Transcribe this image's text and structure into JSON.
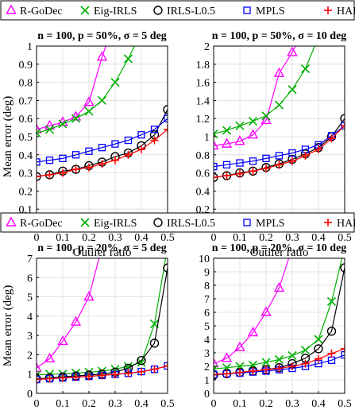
{
  "legend": [
    {
      "name": "R-GoDec",
      "color": "#ff00ff",
      "marker": "triangle"
    },
    {
      "name": "Eig-IRLS",
      "color": "#00b000",
      "marker": "x"
    },
    {
      "name": "IRLS-L0.5",
      "color": "#000000",
      "marker": "circle"
    },
    {
      "name": "MPLS",
      "color": "#0000ff",
      "marker": "square"
    },
    {
      "name": "HARA",
      "color": "#ff0000",
      "marker": "plus"
    }
  ],
  "chart_data": [
    {
      "type": "line",
      "title": "n = 100, p = 50%, σ = 5 deg",
      "xlabel": "Outlier ratio",
      "ylabel": "Mean error (deg)",
      "xlim": [
        0,
        0.5
      ],
      "ylim": [
        0,
        1
      ],
      "xticks": [
        0,
        0.1,
        0.2,
        0.3,
        0.4,
        0.5
      ],
      "xtick_labels": [
        "0",
        "0.1",
        "0.2",
        "0.3",
        "0.4",
        "0.5"
      ],
      "yticks": [
        0,
        0.1,
        0.2,
        0.3,
        0.4,
        0.5,
        0.6,
        0.7,
        0.8,
        0.9,
        1
      ],
      "ytick_labels": [
        "0",
        "0.1",
        "0.2",
        "0.3",
        "0.4",
        "0.5",
        "0.6",
        "0.7",
        "0.8",
        "0.9",
        "1"
      ],
      "grid": true,
      "x": [
        0,
        0.05,
        0.1,
        0.15,
        0.2,
        0.25,
        0.3,
        0.35,
        0.4,
        0.45,
        0.5
      ],
      "series": [
        {
          "name": "R-GoDec",
          "values": [
            0.54,
            0.56,
            0.58,
            0.61,
            0.69,
            0.94,
            1.15,
            null,
            null,
            null,
            null
          ]
        },
        {
          "name": "Eig-IRLS",
          "values": [
            0.52,
            0.54,
            0.57,
            0.6,
            0.64,
            0.7,
            0.8,
            0.93,
            1.08,
            null,
            null
          ]
        },
        {
          "name": "IRLS-L0.5",
          "values": [
            0.28,
            0.29,
            0.31,
            0.32,
            0.34,
            0.36,
            0.39,
            0.41,
            0.45,
            0.51,
            0.65
          ]
        },
        {
          "name": "MPLS",
          "values": [
            0.36,
            0.37,
            0.38,
            0.4,
            0.42,
            0.44,
            0.46,
            0.48,
            0.51,
            0.54,
            0.6
          ]
        },
        {
          "name": "HARA",
          "values": [
            0.28,
            0.29,
            0.3,
            0.32,
            0.33,
            0.35,
            0.37,
            0.4,
            0.43,
            0.48,
            0.54
          ]
        }
      ]
    },
    {
      "type": "line",
      "title": "n = 100, p = 50%, σ = 10 deg",
      "xlabel": "Outlier ratio",
      "ylabel": "",
      "xlim": [
        0,
        0.5
      ],
      "ylim": [
        0,
        2
      ],
      "xticks": [
        0,
        0.1,
        0.2,
        0.3,
        0.4,
        0.5
      ],
      "xtick_labels": [
        "0",
        "0.1",
        "0.2",
        "0.3",
        "0.4",
        "0.5"
      ],
      "yticks": [
        0,
        0.2,
        0.4,
        0.6,
        0.8,
        1,
        1.2,
        1.4,
        1.6,
        1.8,
        2
      ],
      "ytick_labels": [
        "0",
        "0.2",
        "0.4",
        "0.6",
        "0.8",
        "1",
        "1.2",
        "1.4",
        "1.6",
        "1.8",
        "2"
      ],
      "grid": true,
      "x": [
        0,
        0.05,
        0.1,
        0.15,
        0.2,
        0.25,
        0.3,
        0.35,
        0.4,
        0.45,
        0.5
      ],
      "series": [
        {
          "name": "R-GoDec",
          "values": [
            0.9,
            0.92,
            0.95,
            1.02,
            1.18,
            1.7,
            1.93,
            2.2,
            null,
            null,
            null
          ]
        },
        {
          "name": "Eig-IRLS",
          "values": [
            1.03,
            1.07,
            1.12,
            1.17,
            1.23,
            1.35,
            1.52,
            1.75,
            2.1,
            null,
            null
          ]
        },
        {
          "name": "IRLS-L0.5",
          "values": [
            0.55,
            0.57,
            0.6,
            0.62,
            0.66,
            0.7,
            0.75,
            0.81,
            0.88,
            1.0,
            1.2
          ]
        },
        {
          "name": "MPLS",
          "values": [
            0.67,
            0.69,
            0.71,
            0.73,
            0.76,
            0.79,
            0.82,
            0.86,
            0.91,
            1.01,
            1.12
          ]
        },
        {
          "name": "HARA",
          "values": [
            0.55,
            0.57,
            0.59,
            0.62,
            0.65,
            0.69,
            0.73,
            0.79,
            0.86,
            0.98,
            1.12
          ]
        }
      ]
    },
    {
      "type": "line",
      "title": "n = 100, p = 20%, σ = 5 deg",
      "xlabel": "Outlier ratio",
      "ylabel": "Mean error (deg)",
      "xlim": [
        0,
        0.5
      ],
      "ylim": [
        0,
        7
      ],
      "xticks": [
        0,
        0.1,
        0.2,
        0.3,
        0.4,
        0.5
      ],
      "xtick_labels": [
        "0",
        "0.1",
        "0.2",
        "0.3",
        "0.4",
        "0.5"
      ],
      "yticks": [
        0,
        1,
        2,
        3,
        4,
        5,
        6,
        7
      ],
      "ytick_labels": [
        "0",
        "1",
        "2",
        "3",
        "4",
        "5",
        "6",
        "7"
      ],
      "grid": true,
      "x": [
        0,
        0.05,
        0.1,
        0.15,
        0.2,
        0.25,
        0.3,
        0.35,
        0.4,
        0.45,
        0.5
      ],
      "series": [
        {
          "name": "R-GoDec",
          "values": [
            1.3,
            1.8,
            2.7,
            3.7,
            5.0,
            7.6,
            null,
            null,
            null,
            null,
            null
          ]
        },
        {
          "name": "Eig-IRLS",
          "values": [
            0.95,
            1.0,
            1.0,
            1.05,
            1.1,
            1.15,
            1.25,
            1.4,
            1.6,
            3.6,
            7.6
          ]
        },
        {
          "name": "IRLS-L0.5",
          "values": [
            0.75,
            0.8,
            0.85,
            0.9,
            0.95,
            1.0,
            1.1,
            1.3,
            1.7,
            2.6,
            6.5
          ]
        },
        {
          "name": "MPLS",
          "values": [
            0.72,
            0.76,
            0.8,
            0.84,
            0.88,
            0.93,
            0.98,
            1.04,
            1.13,
            1.25,
            1.42
          ]
        },
        {
          "name": "HARA",
          "values": [
            0.72,
            0.76,
            0.8,
            0.84,
            0.88,
            0.93,
            0.98,
            1.04,
            1.12,
            1.25,
            1.42
          ]
        }
      ]
    },
    {
      "type": "line",
      "title": "n = 100, p = 20%, σ = 10 deg",
      "xlabel": "Outlier ratio",
      "ylabel": "",
      "xlim": [
        0,
        0.5
      ],
      "ylim": [
        0,
        10
      ],
      "xticks": [
        0,
        0.1,
        0.2,
        0.3,
        0.4,
        0.5
      ],
      "xtick_labels": [
        "0",
        "0.1",
        "0.2",
        "0.3",
        "0.4",
        "0.5"
      ],
      "yticks": [
        0,
        1,
        2,
        3,
        4,
        5,
        6,
        7,
        8,
        9,
        10
      ],
      "ytick_labels": [
        "0",
        "1",
        "2",
        "3",
        "4",
        "5",
        "6",
        "7",
        "8",
        "9",
        "10"
      ],
      "grid": true,
      "x": [
        0,
        0.05,
        0.1,
        0.15,
        0.2,
        0.25,
        0.3,
        0.35,
        0.4,
        0.45,
        0.5
      ],
      "series": [
        {
          "name": "R-GoDec",
          "values": [
            2.2,
            2.6,
            3.4,
            4.5,
            6.0,
            7.8,
            10.8,
            null,
            null,
            null,
            null
          ]
        },
        {
          "name": "Eig-IRLS",
          "values": [
            1.8,
            1.9,
            2.0,
            2.1,
            2.3,
            2.5,
            2.8,
            3.2,
            4.0,
            6.8,
            10.8
          ]
        },
        {
          "name": "IRLS-L0.5",
          "values": [
            1.35,
            1.45,
            1.55,
            1.65,
            1.75,
            1.9,
            2.2,
            2.6,
            3.3,
            4.6,
            9.3
          ]
        },
        {
          "name": "MPLS",
          "values": [
            1.4,
            1.45,
            1.5,
            1.58,
            1.65,
            1.75,
            1.85,
            2.0,
            2.2,
            2.45,
            2.85
          ]
        },
        {
          "name": "HARA",
          "values": [
            1.4,
            1.45,
            1.55,
            1.65,
            1.75,
            1.85,
            2.0,
            2.2,
            2.55,
            2.95,
            3.3
          ]
        }
      ]
    }
  ]
}
